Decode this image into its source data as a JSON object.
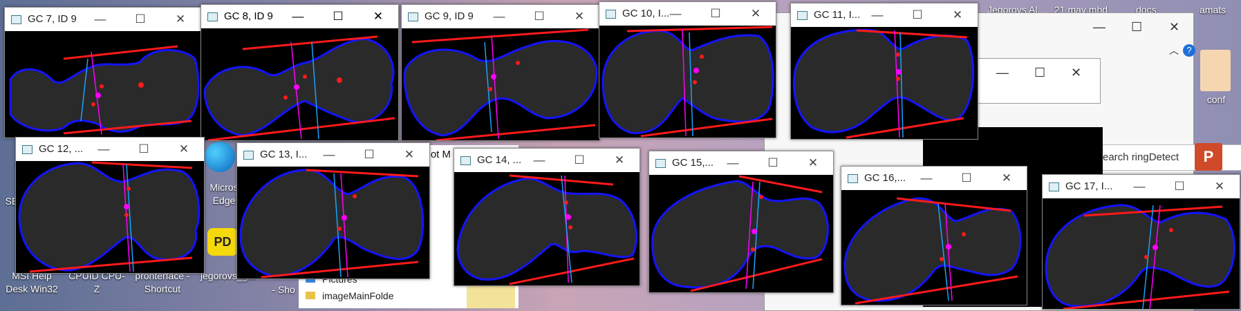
{
  "top_labels": [
    "Jegorovs Al...",
    "21 may mhd",
    "docs",
    "amats"
  ],
  "desktop_icons": {
    "msi": "MSI Help Desk Win32",
    "cpuid": "CPUID CPU-Z",
    "pronterface": "pronterface - Shortcut",
    "jegorovs": "jegorovs_g...",
    "short": "- Sho",
    "edge": "Micros Edge",
    "se": "SE",
    "conf": "conf"
  },
  "explorer": {
    "search_placeholder": "earch ringDetect",
    "hot_label": "Hot M",
    "items": [
      "Pictures",
      "imageMainFolde"
    ]
  },
  "windows": [
    {
      "title": "GC 7, ID 9"
    },
    {
      "title": "GC 8, ID 9"
    },
    {
      "title": "GC 9, ID 9"
    },
    {
      "title": "GC 10, I..."
    },
    {
      "title": "GC 11, I..."
    },
    {
      "title": "GC 12, ..."
    },
    {
      "title": "GC 13, I..."
    },
    {
      "title": "GC 14, ..."
    },
    {
      "title": "GC 15,..."
    },
    {
      "title": "GC 16,..."
    },
    {
      "title": "GC 17, I..."
    }
  ],
  "window_buttons": {
    "minimize": "—",
    "maximize": "☐",
    "close": "✕"
  },
  "colors": {
    "blob": "#2a2a2a",
    "outline": "#1414ff",
    "hull": "#ff1a1a",
    "center": "#ff00ff",
    "axis": "#1aa3ff"
  }
}
